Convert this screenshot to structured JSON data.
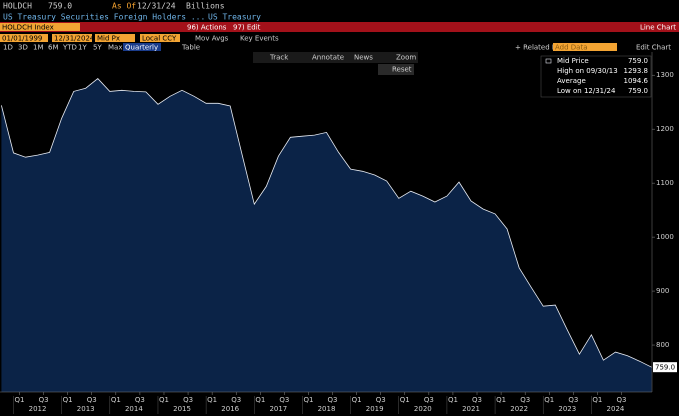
{
  "ui": {
    "ticker": "HOLDCH",
    "last": "759.0",
    "as_of": "As Of",
    "as_of_date": "12/31/24",
    "units": "Billions",
    "desc": "US Treasury Securities Foreign Holders ...",
    "desc2": "US Treasury",
    "actions": "96) Actions",
    "edit": "97) Edit",
    "chart_kind": "Line Chart",
    "security": "HOLDCH Index",
    "start": "01/01/1999",
    "end": "12/31/2024",
    "field": "Mid Px",
    "ccy": "Local CCY",
    "mov_avgs": "Mov Avgs",
    "key_events": "Key Events",
    "periods": [
      "1D",
      "3D",
      "1M",
      "6M",
      "YTD",
      "1Y",
      "5Y",
      "Max"
    ],
    "freq": "Quarterly",
    "table": "Table",
    "related": "+ Related Dat",
    "add_data": "Add Data",
    "edit_chart": "Edit Chart",
    "tools": [
      "Track",
      "Annotate",
      "News",
      "Zoom"
    ],
    "reset": "Reset",
    "legend": [
      {
        "label": "Mid Price",
        "value": "759.0"
      },
      {
        "label": "High on 09/30/13",
        "value": "1293.8"
      },
      {
        "label": "Average",
        "value": "1094.6"
      },
      {
        "label": "Low on 12/31/24",
        "value": "759.0"
      }
    ],
    "last_tag": "759.0"
  },
  "chart_data": {
    "type": "area",
    "x": [
      2011.75,
      2012,
      2012.25,
      2012.5,
      2012.75,
      2013,
      2013.25,
      2013.5,
      2013.75,
      2014,
      2014.25,
      2014.5,
      2014.75,
      2015,
      2015.25,
      2015.5,
      2015.75,
      2016,
      2016.25,
      2016.5,
      2016.75,
      2017,
      2017.25,
      2017.5,
      2017.75,
      2018,
      2018.25,
      2018.5,
      2018.75,
      2019,
      2019.25,
      2019.5,
      2019.75,
      2020,
      2020.25,
      2020.5,
      2020.75,
      2021,
      2021.25,
      2021.5,
      2021.75,
      2022,
      2022.25,
      2022.5,
      2022.75,
      2023,
      2023.25,
      2023.5,
      2023.75,
      2024,
      2024.25,
      2024.5,
      2024.75,
      2025,
      2025.25
    ],
    "series": [
      {
        "name": "Mid Price",
        "color": "#e8ecf4",
        "fill": "#0b2347",
        "values": [
          1244,
          1156,
          1148,
          1152,
          1157,
          1220,
          1270,
          1276,
          1293.8,
          1270,
          1272,
          1270,
          1269,
          1246,
          1261,
          1272,
          1261,
          1248,
          1248,
          1243,
          1152,
          1061,
          1094,
          1150,
          1185,
          1187,
          1189,
          1194,
          1157,
          1126,
          1122,
          1115,
          1104,
          1072,
          1085,
          1076,
          1065,
          1076,
          1102,
          1067,
          1052,
          1043,
          1015,
          943,
          907,
          872,
          874,
          828,
          783,
          819,
          772,
          787,
          780,
          770,
          759
        ]
      }
    ],
    "xlim": [
      2011.72,
      2025.3
    ],
    "xticks": [
      {
        "value": 2012.125,
        "label": "Q1"
      },
      {
        "value": 2012.625,
        "label": "Q3"
      },
      {
        "value": 2013.125,
        "label": "Q1"
      },
      {
        "value": 2013.625,
        "label": "Q3"
      },
      {
        "value": 2014.125,
        "label": "Q1"
      },
      {
        "value": 2014.625,
        "label": "Q3"
      },
      {
        "value": 2015.125,
        "label": "Q1"
      },
      {
        "value": 2015.625,
        "label": "Q3"
      },
      {
        "value": 2016.125,
        "label": "Q1"
      },
      {
        "value": 2016.625,
        "label": "Q3"
      },
      {
        "value": 2017.125,
        "label": "Q1"
      },
      {
        "value": 2017.625,
        "label": "Q3"
      },
      {
        "value": 2018.125,
        "label": "Q1"
      },
      {
        "value": 2018.625,
        "label": "Q3"
      },
      {
        "value": 2019.125,
        "label": "Q1"
      },
      {
        "value": 2019.625,
        "label": "Q3"
      },
      {
        "value": 2020.125,
        "label": "Q1"
      },
      {
        "value": 2020.625,
        "label": "Q3"
      },
      {
        "value": 2021.125,
        "label": "Q1"
      },
      {
        "value": 2021.625,
        "label": "Q3"
      },
      {
        "value": 2022.125,
        "label": "Q1"
      },
      {
        "value": 2022.625,
        "label": "Q3"
      },
      {
        "value": 2023.125,
        "label": "Q1"
      },
      {
        "value": 2023.625,
        "label": "Q3"
      },
      {
        "value": 2024.125,
        "label": "Q1"
      },
      {
        "value": 2024.625,
        "label": "Q3"
      }
    ],
    "year_ticks": [
      2012,
      2013,
      2014,
      2015,
      2016,
      2017,
      2018,
      2019,
      2020,
      2021,
      2022,
      2023,
      2024
    ],
    "ylim": [
      713,
      1343
    ],
    "yticks": [
      800,
      900,
      1000,
      1100,
      1200,
      1300
    ],
    "grid": false
  }
}
